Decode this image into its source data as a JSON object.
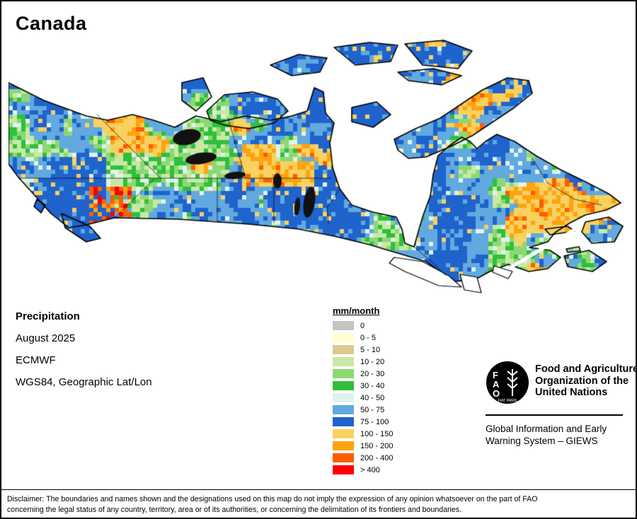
{
  "title": "Canada",
  "info": {
    "heading": "Precipitation",
    "period": "August 2025",
    "source": "ECMWF",
    "projection": "WGS84, Geographic Lat/Lon"
  },
  "legend": {
    "title": "mm/month",
    "items": [
      {
        "label": "0",
        "color": "#c4c4c4"
      },
      {
        "label": "0 - 5",
        "color": "#ffffd2"
      },
      {
        "label": "5 - 10",
        "color": "#dbc98f"
      },
      {
        "label": "10 - 20",
        "color": "#c7e9a4"
      },
      {
        "label": "20 - 30",
        "color": "#8bd874"
      },
      {
        "label": "30 - 40",
        "color": "#2fbf3c"
      },
      {
        "label": "40 - 50",
        "color": "#def3ec"
      },
      {
        "label": "50 - 75",
        "color": "#61a9df"
      },
      {
        "label": "75 - 100",
        "color": "#1f63cc"
      },
      {
        "label": "100 - 150",
        "color": "#f8d160"
      },
      {
        "label": "150 - 200",
        "color": "#ffa30f"
      },
      {
        "label": "200 - 400",
        "color": "#ff5c00"
      },
      {
        "label": "> 400",
        "color": "#fb0000"
      }
    ]
  },
  "footer": {
    "logo_letters": [
      "F",
      "A",
      "O"
    ],
    "logo_motto": "FIAT PANIS",
    "fao_name_lines": [
      "Food and Agriculture",
      "Organization of the",
      "United Nations"
    ],
    "giews_lines": [
      "Global Information and Early",
      "Warning System – GIEWS"
    ]
  },
  "disclaimer": {
    "line1": "Disclaimer: The boundaries and names shown and the designations used on this map do not imply the expression of any opinion whatsoever on the part of FAO",
    "line2": "concerning the legal status of any country, territory, area or of its authorities, or concerning the delimitation of its frontiers and boundaries."
  }
}
